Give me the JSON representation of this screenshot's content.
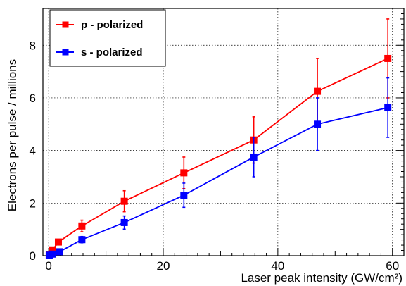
{
  "chart_data": {
    "type": "scatter",
    "xlabel": "Laser peak intensity (GW/cm²)",
    "ylabel": "Electrons per pulse / millions",
    "xlim": [
      -1,
      62
    ],
    "ylim": [
      0,
      9.4
    ],
    "x_ticks": [
      0,
      20,
      40,
      60
    ],
    "y_ticks": [
      0,
      2,
      4,
      6,
      8
    ],
    "grid": true,
    "legend_position": "top-left",
    "series": [
      {
        "name": "p - polarized",
        "color": "#ff0000",
        "marker": "square",
        "points": [
          {
            "x": 0.1,
            "y": 0.04,
            "err": 0.02
          },
          {
            "x": 0.7,
            "y": 0.22,
            "err": 0.05
          },
          {
            "x": 1.7,
            "y": 0.52,
            "err": 0.08
          },
          {
            "x": 5.8,
            "y": 1.13,
            "err": 0.22
          },
          {
            "x": 13.2,
            "y": 2.07,
            "err": 0.4
          },
          {
            "x": 23.6,
            "y": 3.15,
            "err": 0.6
          },
          {
            "x": 35.8,
            "y": 4.4,
            "err": 0.88
          },
          {
            "x": 46.9,
            "y": 6.25,
            "err": 1.25
          },
          {
            "x": 59.2,
            "y": 7.5,
            "err": 1.5
          }
        ]
      },
      {
        "name": "s - polarized",
        "color": "#0000ff",
        "marker": "square",
        "points": [
          {
            "x": 0.1,
            "y": 0.02,
            "err": 0.01
          },
          {
            "x": 0.7,
            "y": 0.06,
            "err": 0.02
          },
          {
            "x": 1.9,
            "y": 0.15,
            "err": 0.03
          },
          {
            "x": 5.8,
            "y": 0.61,
            "err": 0.12
          },
          {
            "x": 13.2,
            "y": 1.26,
            "err": 0.25
          },
          {
            "x": 23.6,
            "y": 2.3,
            "err": 0.46
          },
          {
            "x": 35.8,
            "y": 3.75,
            "err": 0.75
          },
          {
            "x": 46.9,
            "y": 5.0,
            "err": 1.0
          },
          {
            "x": 59.2,
            "y": 5.63,
            "err": 1.13
          }
        ]
      }
    ]
  }
}
